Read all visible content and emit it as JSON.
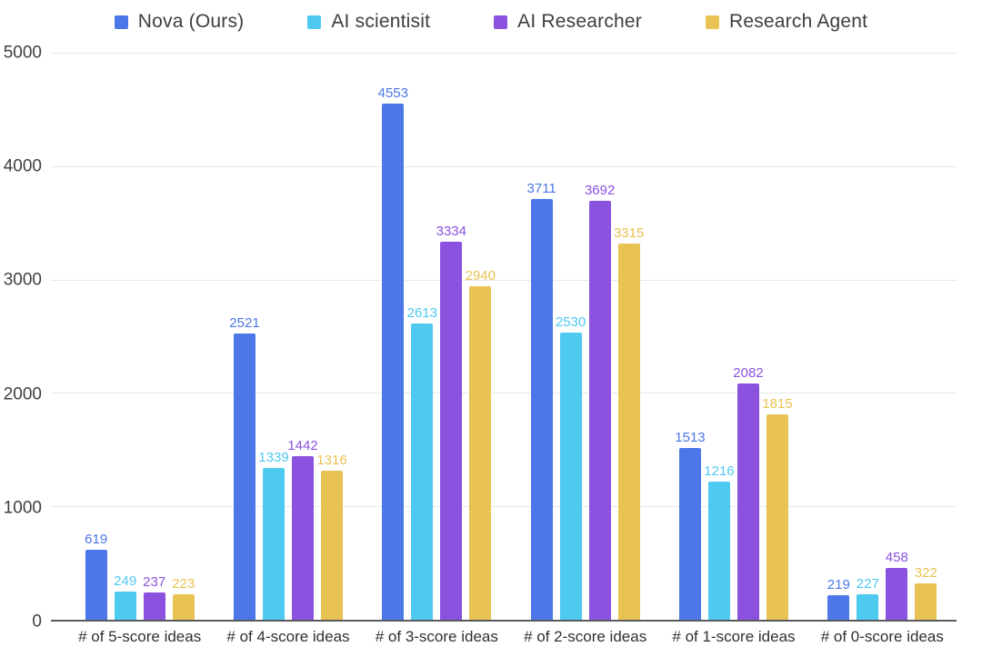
{
  "chart_data": {
    "type": "bar",
    "title": "",
    "categories": [
      "# of 5-score ideas",
      "# of 4-score ideas",
      "# of 3-score ideas",
      "# of 2-score ideas",
      "# of 1-score ideas",
      "# of 0-score ideas"
    ],
    "series": [
      {
        "name": "Nova (Ours)",
        "color": "#4B77E8",
        "values": [
          619,
          2521,
          4553,
          3711,
          1513,
          219
        ]
      },
      {
        "name": "AI scientisit",
        "color": "#4EC9F0",
        "values": [
          249,
          1339,
          2613,
          2530,
          1216,
          227
        ]
      },
      {
        "name": "AI Researcher",
        "color": "#8B52E0",
        "values": [
          237,
          1442,
          3334,
          3692,
          2082,
          458
        ]
      },
      {
        "name": "Research Agent",
        "color": "#E8C353",
        "values": [
          223,
          1316,
          2940,
          3315,
          1815,
          322
        ]
      }
    ],
    "y_ticks": [
      0,
      1000,
      2000,
      3000,
      4000,
      5000
    ],
    "ylim": [
      0,
      5000
    ],
    "grid": true,
    "legend_position": "top",
    "value_labels": true
  },
  "style": {
    "axis_line_color": "#595a5e",
    "grid_color": "#e7e8ea",
    "tick_label_color": "#3f4042",
    "category_label_color": "#2f3032",
    "legend_text_color": "#3d3e40",
    "background": "#ffffff"
  }
}
